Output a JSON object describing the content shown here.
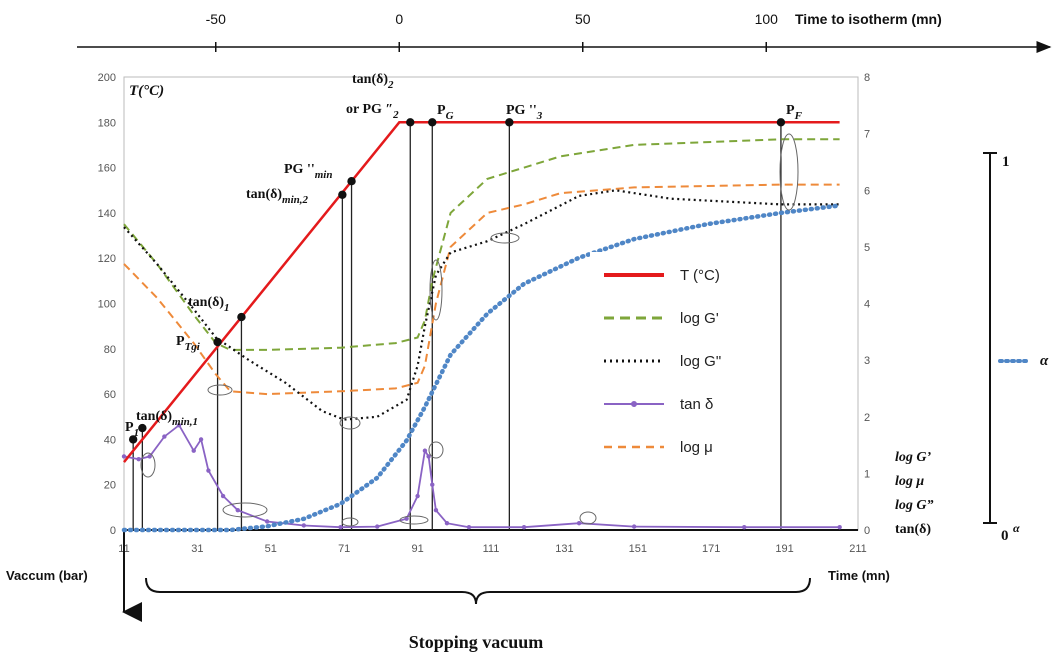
{
  "chart_data": {
    "type": "line",
    "title": "",
    "axes": {
      "x_bottom": {
        "label": "Time (mn)",
        "range": [
          11,
          211
        ],
        "ticks": [
          "11",
          "31",
          "51",
          "71",
          "91",
          "111",
          "131",
          "151",
          "171",
          "191",
          "211"
        ],
        "bold_label": true
      },
      "x_top": {
        "label": "Time to isotherm (mn)",
        "range": [
          -75,
          110
        ],
        "ticks": [
          "-50",
          "0",
          "50",
          "100"
        ]
      },
      "y_left": {
        "label": "T(°C)",
        "range": [
          0,
          200
        ],
        "ticks": [
          "0",
          "20",
          "40",
          "60",
          "80",
          "100",
          "120",
          "140",
          "160",
          "180",
          "200"
        ]
      },
      "y_right": {
        "label": "log G'\nlog μ\nlog G\"\ntan(δ)",
        "label_lines": [
          "log G’",
          "log μ",
          "log G”",
          "tan(δ)"
        ],
        "range": [
          0,
          8
        ],
        "ticks": [
          "0",
          "1",
          "2",
          "3",
          "4",
          "5",
          "6",
          "7",
          "8"
        ]
      },
      "y_alpha": {
        "label_top": "1",
        "label_bottom": "0",
        "alpha_symbol": "α",
        "range": [
          0,
          1
        ]
      },
      "y_vacuum": {
        "label": "Vaccum (bar)"
      }
    },
    "annotation_bottom": "Stopping vacuum",
    "grid": false,
    "legend_placement": "right-center",
    "series": [
      {
        "name": "T (°C)",
        "axis": "left",
        "color": "#e41a1c",
        "style": "solid",
        "x": [
          11,
          86,
          206
        ],
        "y": [
          30,
          180,
          180
        ]
      },
      {
        "name": "log G'",
        "axis": "right",
        "color": "#7ea63a",
        "style": "dashed",
        "x": [
          11,
          20,
          30,
          36,
          40,
          50,
          70,
          85,
          91,
          93,
          95,
          100,
          110,
          130,
          150,
          190,
          206
        ],
        "y": [
          5.4,
          4.7,
          3.8,
          3.3,
          3.18,
          3.18,
          3.22,
          3.3,
          3.4,
          3.7,
          4.4,
          5.6,
          6.2,
          6.6,
          6.8,
          6.9,
          6.9
        ]
      },
      {
        "name": "log G\"",
        "axis": "right",
        "color": "#111111",
        "style": "dotted",
        "x": [
          11,
          20,
          30,
          36,
          45,
          55,
          65,
          71,
          80,
          88,
          91,
          93,
          96,
          100,
          110,
          120,
          135,
          145,
          160,
          190,
          206
        ],
        "y": [
          5.35,
          4.7,
          3.9,
          3.4,
          3.0,
          2.6,
          2.1,
          1.95,
          2.0,
          2.3,
          2.9,
          3.6,
          4.5,
          4.9,
          5.1,
          5.4,
          5.9,
          6.0,
          5.85,
          5.75,
          5.75
        ]
      },
      {
        "name": "tan δ",
        "axis": "right",
        "color": "#8a63c4",
        "style": "solid-markers",
        "x": [
          11,
          15,
          18,
          22,
          26,
          30,
          32,
          34,
          38,
          42,
          50,
          60,
          70,
          80,
          88,
          91,
          93,
          94,
          95,
          96,
          99,
          105,
          120,
          135,
          150,
          180,
          206
        ],
        "y": [
          1.3,
          1.25,
          1.3,
          1.65,
          1.85,
          1.4,
          1.6,
          1.05,
          0.6,
          0.35,
          0.15,
          0.08,
          0.05,
          0.06,
          0.2,
          0.6,
          1.4,
          1.3,
          0.8,
          0.35,
          0.12,
          0.05,
          0.05,
          0.12,
          0.06,
          0.05,
          0.05
        ]
      },
      {
        "name": "log μ",
        "axis": "right",
        "color": "#ee8a3a",
        "style": "dashed",
        "x": [
          11,
          20,
          30,
          36,
          40,
          50,
          70,
          85,
          91,
          93,
          96,
          100,
          110,
          120,
          130,
          150,
          190,
          206
        ],
        "y": [
          4.7,
          4.1,
          3.3,
          2.75,
          2.45,
          2.4,
          2.45,
          2.5,
          2.6,
          2.9,
          4.0,
          5.0,
          5.6,
          5.75,
          5.95,
          6.05,
          6.1,
          6.1
        ]
      },
      {
        "name": "α",
        "axis": "alpha",
        "color": "#4f86c6",
        "style": "dotted-thick",
        "x": [
          11,
          40,
          50,
          60,
          70,
          80,
          88,
          93,
          100,
          110,
          120,
          135,
          150,
          170,
          190,
          206
        ],
        "y": [
          0.0,
          0.0,
          0.01,
          0.03,
          0.07,
          0.14,
          0.24,
          0.33,
          0.47,
          0.58,
          0.66,
          0.73,
          0.78,
          0.82,
          0.85,
          0.87
        ]
      }
    ],
    "points": [
      {
        "label": "P",
        "sub": "1",
        "x": 13.5,
        "t": 40
      },
      {
        "label": "tan(δ)",
        "sub": "min,1",
        "x": 16,
        "t": 45
      },
      {
        "label": "P",
        "sub": "Tgi",
        "x": 36.5,
        "t": 83
      },
      {
        "label": "tan(δ)",
        "sub": "1",
        "x": 43,
        "t": 94
      },
      {
        "label": "tan(δ)",
        "sub": "min,2",
        "x": 70.5,
        "t": 148
      },
      {
        "label": "PG ''",
        "sub": "min",
        "x": 73,
        "t": 154
      },
      {
        "label": "tan(δ)2 or PG ''2",
        "sub": "",
        "x": 89,
        "t": 180
      },
      {
        "label": "P",
        "sub": "G",
        "x": 95,
        "t": 180
      },
      {
        "label": "PG ''",
        "sub": "3",
        "x": 116,
        "t": 180
      },
      {
        "label": "P",
        "sub": "F",
        "x": 190,
        "t": 180
      }
    ]
  }
}
